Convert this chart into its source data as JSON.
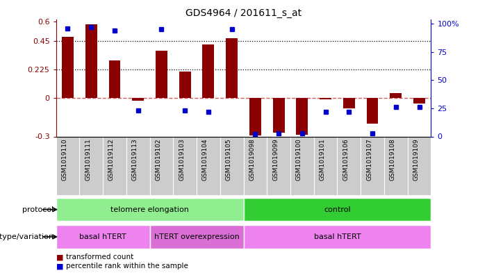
{
  "title": "GDS4964 / 201611_s_at",
  "samples": [
    "GSM1019110",
    "GSM1019111",
    "GSM1019112",
    "GSM1019113",
    "GSM1019102",
    "GSM1019103",
    "GSM1019104",
    "GSM1019105",
    "GSM1019098",
    "GSM1019099",
    "GSM1019100",
    "GSM1019101",
    "GSM1019106",
    "GSM1019107",
    "GSM1019108",
    "GSM1019109"
  ],
  "transformed_count": [
    0.48,
    0.58,
    0.295,
    -0.02,
    0.37,
    0.21,
    0.42,
    0.47,
    -0.29,
    -0.27,
    -0.285,
    -0.01,
    -0.08,
    -0.2,
    0.04,
    -0.04
  ],
  "percentile_rank": [
    96,
    97,
    94,
    23,
    95,
    23,
    22,
    95,
    2,
    3,
    3,
    22,
    22,
    3,
    26,
    26
  ],
  "ylim_left": [
    -0.3,
    0.62
  ],
  "ylim_right": [
    0,
    104
  ],
  "yticks_left": [
    -0.3,
    0,
    0.225,
    0.45,
    0.6
  ],
  "yticks_right": [
    0,
    25,
    50,
    75,
    100
  ],
  "hline_y": [
    0.225,
    0.45
  ],
  "protocol_groups": [
    {
      "label": "telomere elongation",
      "start": 0,
      "end": 8,
      "color": "#90EE90"
    },
    {
      "label": "control",
      "start": 8,
      "end": 16,
      "color": "#32CD32"
    }
  ],
  "genotype_groups": [
    {
      "label": "basal hTERT",
      "start": 0,
      "end": 4,
      "color": "#EE82EE"
    },
    {
      "label": "hTERT overexpression",
      "start": 4,
      "end": 8,
      "color": "#DA70D6"
    },
    {
      "label": "basal hTERT",
      "start": 8,
      "end": 16,
      "color": "#EE82EE"
    }
  ],
  "bar_color": "#8B0000",
  "dot_color": "#0000CD",
  "zero_line_color": "#CD5C5C",
  "bar_width": 0.5,
  "legend_label_tc": "transformed count",
  "legend_label_pr": "percentile rank within the sample",
  "protocol_label": "protocol",
  "genotype_label": "genotype/variation"
}
